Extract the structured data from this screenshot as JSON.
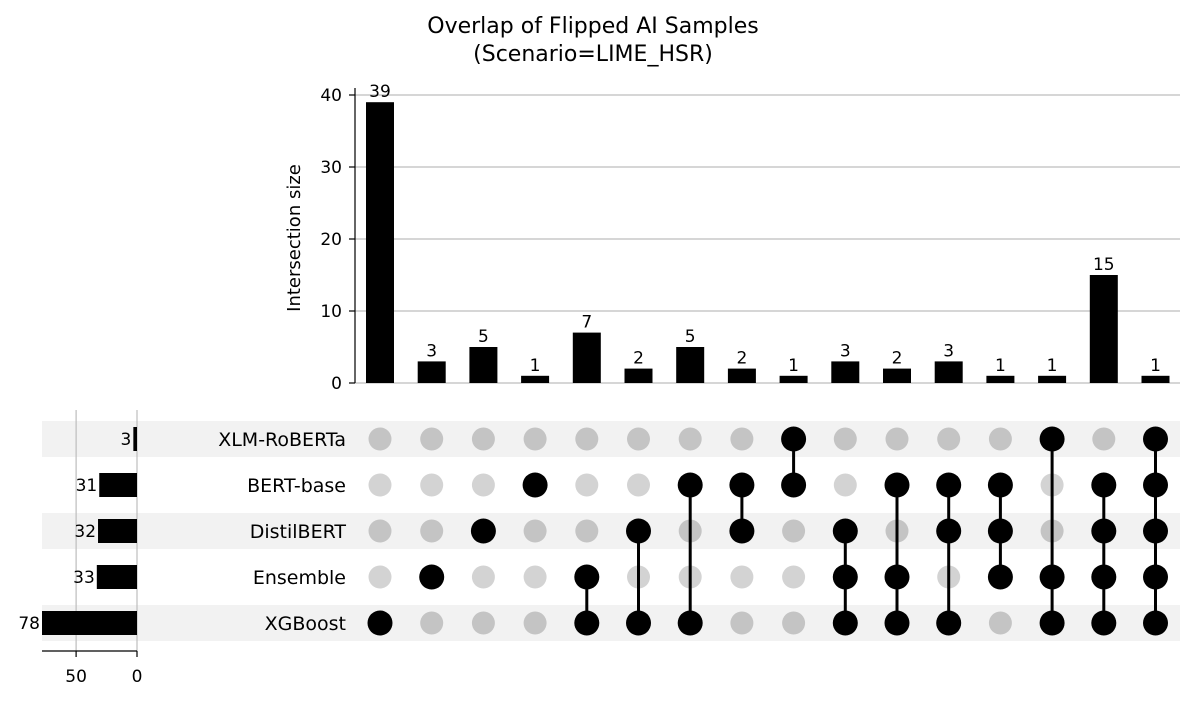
{
  "chart_data": {
    "type": "upset",
    "title": "Overlap of Flipped AI Samples",
    "subtitle": "(Scenario=LIME_HSR)",
    "intersection_axis": {
      "label": "Intersection size",
      "ticks": [
        "0",
        "10",
        "20",
        "30",
        "40"
      ],
      "ylim": [
        0,
        40
      ],
      "grid": true
    },
    "set_size_axis": {
      "ticks": [
        "50",
        "0"
      ],
      "xlim": [
        78,
        0
      ]
    },
    "sets": [
      {
        "name": "XLM-RoBERTa",
        "size": 3,
        "size_label": "3"
      },
      {
        "name": "BERT-base",
        "size": 31,
        "size_label": "31"
      },
      {
        "name": "DistilBERT",
        "size": 32,
        "size_label": "32"
      },
      {
        "name": "Ensemble",
        "size": 33,
        "size_label": "33"
      },
      {
        "name": "XGBoost",
        "size": 78,
        "size_label": "78"
      }
    ],
    "intersections": [
      {
        "members": [
          "XGBoost"
        ],
        "size": 39,
        "label": "39"
      },
      {
        "members": [
          "Ensemble"
        ],
        "size": 3,
        "label": "3"
      },
      {
        "members": [
          "DistilBERT"
        ],
        "size": 5,
        "label": "5"
      },
      {
        "members": [
          "BERT-base"
        ],
        "size": 1,
        "label": "1"
      },
      {
        "members": [
          "Ensemble",
          "XGBoost"
        ],
        "size": 7,
        "label": "7"
      },
      {
        "members": [
          "DistilBERT",
          "XGBoost"
        ],
        "size": 2,
        "label": "2"
      },
      {
        "members": [
          "BERT-base",
          "XGBoost"
        ],
        "size": 5,
        "label": "5"
      },
      {
        "members": [
          "BERT-base",
          "DistilBERT"
        ],
        "size": 2,
        "label": "2"
      },
      {
        "members": [
          "XLM-RoBERTa",
          "BERT-base"
        ],
        "size": 1,
        "label": "1"
      },
      {
        "members": [
          "DistilBERT",
          "Ensemble",
          "XGBoost"
        ],
        "size": 3,
        "label": "3"
      },
      {
        "members": [
          "BERT-base",
          "Ensemble",
          "XGBoost"
        ],
        "size": 2,
        "label": "2"
      },
      {
        "members": [
          "BERT-base",
          "DistilBERT",
          "XGBoost"
        ],
        "size": 3,
        "label": "3"
      },
      {
        "members": [
          "BERT-base",
          "DistilBERT",
          "Ensemble"
        ],
        "size": 1,
        "label": "1"
      },
      {
        "members": [
          "XLM-RoBERTa",
          "Ensemble",
          "XGBoost"
        ],
        "size": 1,
        "label": "1"
      },
      {
        "members": [
          "BERT-base",
          "DistilBERT",
          "Ensemble",
          "XGBoost"
        ],
        "size": 15,
        "label": "15"
      },
      {
        "members": [
          "XLM-RoBERTa",
          "BERT-base",
          "DistilBERT",
          "Ensemble",
          "XGBoost"
        ],
        "size": 1,
        "label": "1"
      }
    ],
    "colors": {
      "bar": "#000000",
      "dot_active": "#000000",
      "dot_inactive_light": "#d3d3d3",
      "dot_inactive_dark": "#c4c4c4",
      "row_shade": "#f2f2f2",
      "grid": "#bdbdbd"
    }
  }
}
